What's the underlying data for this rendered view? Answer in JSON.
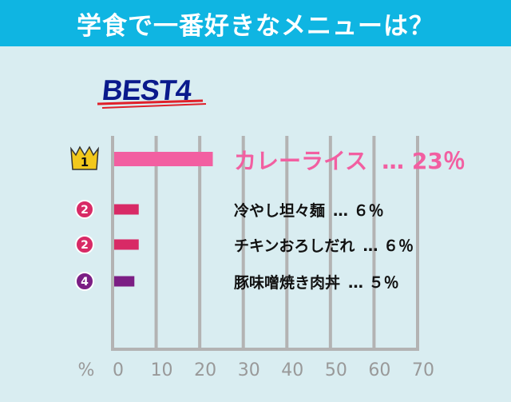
{
  "header": {
    "title": "学食で一番好きなメニューは？"
  },
  "badge": {
    "text": "BEST4"
  },
  "chart_data": {
    "type": "bar",
    "orientation": "horizontal",
    "title": "学食で一番好きなメニューは？",
    "xlabel": "%",
    "xlim": [
      0,
      70
    ],
    "xticks": [
      "0",
      "10",
      "20",
      "30",
      "40",
      "50",
      "60",
      "70"
    ],
    "grid": true,
    "categories": [
      "カレーライス",
      "冷やし坦々麺",
      "チキンおろしだれ",
      "豚味噌焼き肉丼"
    ],
    "values": [
      23,
      6,
      6,
      5
    ],
    "ranks": [
      "1",
      "2",
      "2",
      "4"
    ],
    "value_labels": [
      "… 23％",
      "… ６％",
      "… ６％",
      "… ５％"
    ],
    "colors": [
      "#f25fa1",
      "#d82a66",
      "#d82a66",
      "#7b1e84"
    ],
    "rank_colors": [
      "#f2c81c",
      "#d82a66",
      "#d82a66",
      "#7b1e84"
    ]
  }
}
